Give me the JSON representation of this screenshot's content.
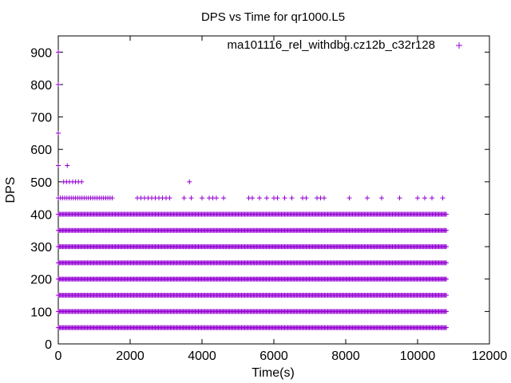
{
  "chart_data": {
    "type": "scatter",
    "title": "DPS vs Time for qr1000.L5",
    "xlabel": "Time(s)",
    "ylabel": "DPS",
    "xlim": [
      0,
      12000
    ],
    "ylim": [
      0,
      950
    ],
    "x_ticks": [
      "0",
      "2000",
      "4000",
      "6000",
      "8000",
      "10000",
      "12000"
    ],
    "y_ticks": [
      "0",
      "100",
      "200",
      "300",
      "400",
      "500",
      "600",
      "700",
      "800",
      "900"
    ],
    "grid": false,
    "legend_position": "top-right",
    "marker": "plus",
    "series": [
      {
        "name": "ma101116_rel_withdbg.cz12b_c32r128",
        "color": "#9400d3",
        "x_range": [
          0,
          10800
        ],
        "dense_levels": [
          50,
          100,
          150,
          200,
          250,
          300,
          350,
          400
        ],
        "sparse_level_450": [
          0,
          60,
          120,
          180,
          240,
          300,
          360,
          420,
          480,
          540,
          600,
          660,
          720,
          780,
          840,
          900,
          960,
          1020,
          1080,
          1140,
          1200,
          1260,
          1320,
          1380,
          1440,
          1500,
          2200,
          2300,
          2400,
          2500,
          2600,
          2700,
          2800,
          2900,
          3000,
          3100,
          3500,
          3700,
          4000,
          4200,
          4300,
          4400,
          4600,
          5300,
          5400,
          5600,
          5800,
          6000,
          6100,
          6300,
          6500,
          6800,
          6900,
          7200,
          7300,
          7400,
          8100,
          8600,
          9000,
          9500,
          10000,
          10200,
          10400,
          10700
        ],
        "extra_points": [
          {
            "x": 0,
            "y": 650
          },
          {
            "x": 0,
            "y": 550
          },
          {
            "x": 250,
            "y": 550
          },
          {
            "x": 150,
            "y": 500
          },
          {
            "x": 230,
            "y": 500
          },
          {
            "x": 310,
            "y": 500
          },
          {
            "x": 400,
            "y": 500
          },
          {
            "x": 480,
            "y": 500
          },
          {
            "x": 560,
            "y": 500
          },
          {
            "x": 650,
            "y": 500
          },
          {
            "x": 3650,
            "y": 500
          },
          {
            "x": 0,
            "y": 800
          },
          {
            "x": 0,
            "y": 900
          }
        ]
      }
    ]
  }
}
